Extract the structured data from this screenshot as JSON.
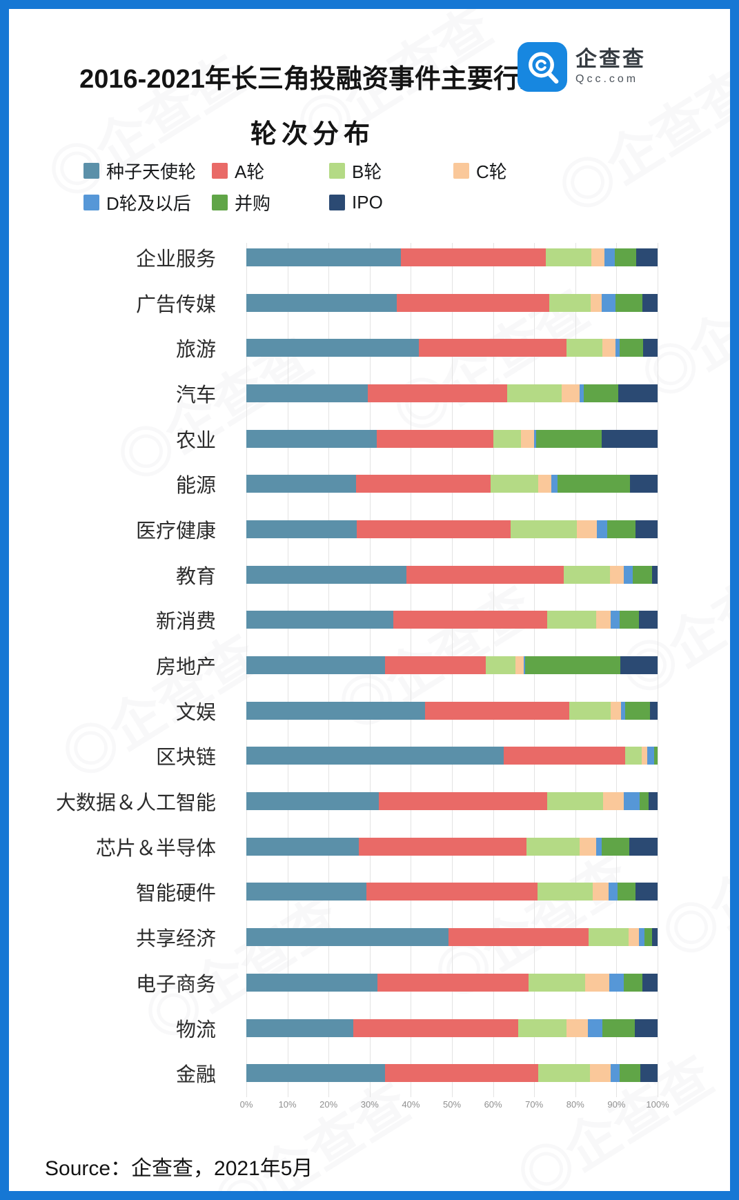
{
  "page": {
    "frame_color": "#1677d4",
    "card_color": "#ffffff",
    "watermark_text": "◎企查查"
  },
  "header": {
    "title_line1": "2016-2021年长三角投融资事件主要行业",
    "title_line2": "轮次分布",
    "logo": {
      "name": "企查查",
      "domain": "Qcc.com",
      "icon_color": "#1787e0"
    }
  },
  "source": "Source：企查查，2021年5月",
  "chart_data": {
    "type": "bar",
    "orientation": "horizontal",
    "stacked": true,
    "unit": "percent",
    "grid": true,
    "legend_position": "top",
    "xlim": [
      0,
      100
    ],
    "x_ticks": [
      "0%",
      "10%",
      "20%",
      "30%",
      "40%",
      "50%",
      "60%",
      "70%",
      "80%",
      "90%",
      "100%"
    ],
    "series_names": [
      "种子天使轮",
      "A轮",
      "B轮",
      "C轮",
      "D轮及以后",
      "并购",
      "IPO"
    ],
    "series_colors": [
      "#5b90a9",
      "#e96a67",
      "#b4da85",
      "#fac89a",
      "#5697d7",
      "#60a547",
      "#2b4a73"
    ],
    "categories": [
      "企业服务",
      "广告传媒",
      "旅游",
      "汽车",
      "农业",
      "能源",
      "医疗健康",
      "教育",
      "新消费",
      "房地产",
      "文娱",
      "区块链",
      "大数据＆人工智能",
      "芯片＆半导体",
      "智能硬件",
      "共享经济",
      "电子商务",
      "物流",
      "金融"
    ],
    "rows": [
      [
        37.5,
        35.3,
        11.1,
        3.2,
        2.5,
        5.2,
        5.2
      ],
      [
        36.5,
        37.2,
        10.0,
        2.7,
        3.3,
        6.6,
        3.7
      ],
      [
        42.0,
        35.8,
        8.8,
        3.1,
        1.0,
        5.7,
        3.6
      ],
      [
        29.5,
        33.9,
        13.3,
        4.3,
        1.1,
        8.3,
        9.6
      ],
      [
        31.7,
        28.4,
        6.6,
        3.3,
        0.5,
        16.0,
        13.5
      ],
      [
        26.6,
        32.8,
        11.6,
        3.2,
        1.4,
        17.7,
        6.7
      ],
      [
        26.9,
        37.4,
        16.0,
        5.0,
        2.5,
        6.8,
        5.4
      ],
      [
        39.0,
        38.1,
        11.4,
        3.3,
        2.1,
        4.7,
        1.4
      ],
      [
        35.7,
        37.5,
        11.8,
        3.6,
        2.1,
        4.7,
        4.6
      ],
      [
        33.7,
        24.5,
        7.2,
        2.0,
        0.4,
        23.1,
        9.1
      ],
      [
        43.4,
        35.2,
        10.0,
        2.5,
        1.0,
        6.1,
        1.8
      ],
      [
        62.5,
        29.6,
        4.1,
        1.3,
        1.7,
        0.8,
        0.0
      ],
      [
        32.2,
        40.9,
        13.7,
        5.0,
        3.8,
        2.2,
        2.2
      ],
      [
        27.4,
        40.8,
        12.9,
        4.0,
        1.3,
        6.7,
        6.9
      ],
      [
        29.2,
        41.6,
        13.5,
        3.8,
        2.2,
        4.3,
        5.4
      ],
      [
        49.2,
        34.1,
        9.6,
        2.5,
        1.5,
        1.7,
        1.4
      ],
      [
        31.9,
        36.7,
        13.8,
        5.9,
        3.5,
        4.6,
        3.6
      ],
      [
        26.0,
        40.1,
        11.8,
        5.2,
        3.5,
        7.8,
        5.6
      ],
      [
        33.8,
        37.2,
        12.6,
        5.0,
        2.2,
        5.0,
        4.2
      ]
    ]
  }
}
